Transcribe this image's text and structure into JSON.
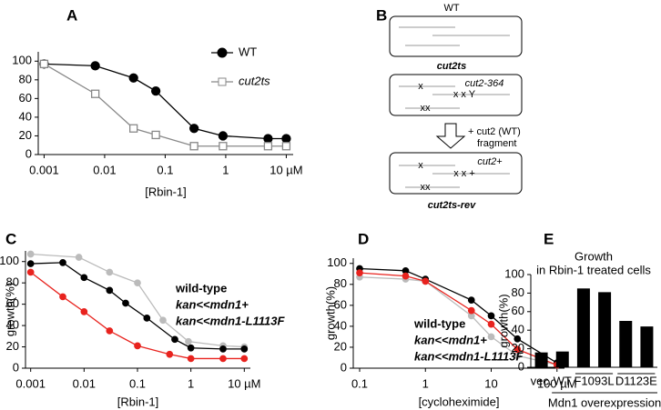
{
  "chart_data": [
    {
      "panel": "A",
      "type": "line",
      "xscale": "log",
      "xlabel": "[Rbin-1]",
      "xlim": [
        0.0008,
        13
      ],
      "xticks": [
        0.001,
        0.01,
        0.1,
        1,
        {
          "value": 10,
          "label": "10 µM"
        }
      ],
      "ylim": [
        0,
        110
      ],
      "yticks": [
        0,
        20,
        40,
        60,
        80,
        100
      ],
      "legend_style": "marker",
      "series": [
        {
          "name": "WT",
          "color": "#000000",
          "marker": "circle",
          "filled": true,
          "italic": false,
          "x": [
            0.001,
            0.007,
            0.03,
            0.07,
            0.3,
            0.9,
            5,
            10
          ],
          "values": [
            97,
            95,
            82,
            68,
            28,
            20,
            17,
            17
          ]
        },
        {
          "name": "cut2ts",
          "color": "#888888",
          "marker": "square",
          "filled": false,
          "italic": true,
          "x": [
            0.001,
            0.007,
            0.03,
            0.07,
            0.3,
            0.9,
            5,
            10
          ],
          "values": [
            97,
            65,
            28,
            21,
            9,
            9,
            9,
            9
          ]
        }
      ]
    },
    {
      "panel": "C",
      "type": "line",
      "xscale": "log",
      "xlabel": "[Rbin-1]",
      "ylabel": "growth(%)",
      "xlim": [
        0.0008,
        13
      ],
      "xticks": [
        0.001,
        0.01,
        0.1,
        1,
        {
          "value": 10,
          "label": "10 µM"
        }
      ],
      "ylim": [
        0,
        110
      ],
      "yticks": [
        0,
        20,
        40,
        60,
        80,
        100
      ],
      "legend_style": "text",
      "series": [
        {
          "name": "wild-type",
          "color": "#bbbbbb",
          "marker": "circle",
          "filled": true,
          "italic": false,
          "x": [
            0.001,
            0.008,
            0.03,
            0.1,
            0.3,
            0.9,
            4,
            10
          ],
          "values": [
            107,
            104,
            90,
            80,
            45,
            25,
            21,
            20
          ]
        },
        {
          "name": "kan<<mdn1+",
          "color": "#000000",
          "marker": "circle",
          "filled": true,
          "italic": true,
          "x": [
            0.001,
            0.004,
            0.01,
            0.03,
            0.06,
            0.15,
            0.5,
            1,
            4,
            10
          ],
          "values": [
            98,
            99,
            85,
            73,
            61,
            47,
            27,
            19,
            18,
            18
          ]
        },
        {
          "name": "kan<<mdn1-L1113F",
          "color": "#e8231e",
          "marker": "circle",
          "filled": true,
          "italic": true,
          "x": [
            0.001,
            0.004,
            0.01,
            0.03,
            0.1,
            0.4,
            1,
            4,
            10
          ],
          "values": [
            90,
            67,
            53,
            35,
            21,
            13,
            9,
            9,
            9
          ]
        }
      ]
    },
    {
      "panel": "D",
      "type": "line",
      "xscale": "log",
      "xlabel": "[cycloheximide]",
      "ylabel": "growth(%)",
      "xlim": [
        0.08,
        130
      ],
      "xticks": [
        0.1,
        1,
        10,
        {
          "value": 100,
          "label": "100 µM"
        }
      ],
      "ylim": [
        0,
        105
      ],
      "yticks": [
        0,
        20,
        40,
        60,
        80,
        100
      ],
      "legend_style": "text",
      "series": [
        {
          "name": "wild-type",
          "color": "#bbbbbb",
          "marker": "circle",
          "filled": true,
          "italic": false,
          "x": [
            0.1,
            0.5,
            1,
            5,
            10,
            25,
            100
          ],
          "values": [
            87,
            85,
            83,
            50,
            30,
            12,
            3
          ]
        },
        {
          "name": "kan<<mdn1+",
          "color": "#000000",
          "marker": "circle",
          "filled": true,
          "italic": true,
          "x": [
            0.1,
            0.5,
            1,
            5,
            10,
            25,
            100
          ],
          "values": [
            95,
            93,
            85,
            65,
            50,
            28,
            5
          ]
        },
        {
          "name": "kan<<mdn1-L1113F",
          "color": "#e8231e",
          "marker": "circle",
          "filled": true,
          "italic": true,
          "x": [
            0.1,
            0.5,
            1,
            5,
            10,
            25,
            100
          ],
          "values": [
            91,
            88,
            83,
            55,
            42,
            18,
            3
          ]
        }
      ]
    },
    {
      "panel": "E",
      "type": "bar",
      "title": "Growth",
      "subtitle": "in Rbin-1 treated cells",
      "ylabel": "growth(%)",
      "xlabel": "Mdn1 overexpression",
      "categories": [
        "vec.",
        "WT",
        "F1093L",
        null,
        "D1123E",
        null
      ],
      "values": [
        16,
        17,
        85,
        81,
        50,
        44
      ],
      "color": "#000000",
      "ylim": [
        0,
        100
      ],
      "yticks": [
        0,
        20,
        40,
        60,
        80,
        100
      ]
    }
  ],
  "diagram": {
    "panel": "B",
    "boxes": [
      {
        "label": "WT"
      },
      {
        "label": "cut2ts",
        "allele": "cut2-364",
        "marks": [
          "x",
          "x x Y",
          "xx"
        ]
      },
      {
        "label": "cut2ts-rev",
        "allele": "cut2+",
        "marks": [
          "x",
          "x x +",
          "xx"
        ]
      }
    ],
    "arrow_label": [
      "+ cut2 (WT)",
      "fragment"
    ]
  }
}
